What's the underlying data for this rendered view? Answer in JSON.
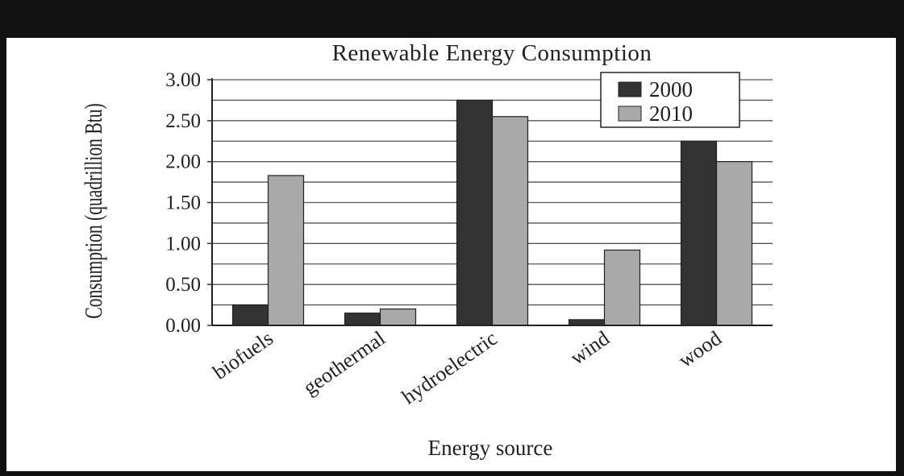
{
  "chart_data": {
    "type": "bar",
    "title": "Renewable Energy Consumption",
    "xlabel": "Energy source",
    "ylabel": "Consumption (quadrillion Btu)",
    "categories": [
      "biofuels",
      "geothermal",
      "hydroelectric",
      "wind",
      "wood"
    ],
    "series": [
      {
        "name": "2000",
        "values": [
          0.25,
          0.15,
          2.75,
          0.07,
          2.25
        ],
        "color": "#333333"
      },
      {
        "name": "2010",
        "values": [
          1.83,
          0.2,
          2.55,
          0.92,
          2.0
        ],
        "color": "#a9a9a9"
      }
    ],
    "ylim": [
      0,
      3.0
    ],
    "yticks": [
      "0.00",
      "0.50",
      "1.00",
      "1.50",
      "2.00",
      "2.50",
      "3.00"
    ],
    "grid": true,
    "minor_gridlines_per_major": 2,
    "legend_position": "top-right"
  }
}
